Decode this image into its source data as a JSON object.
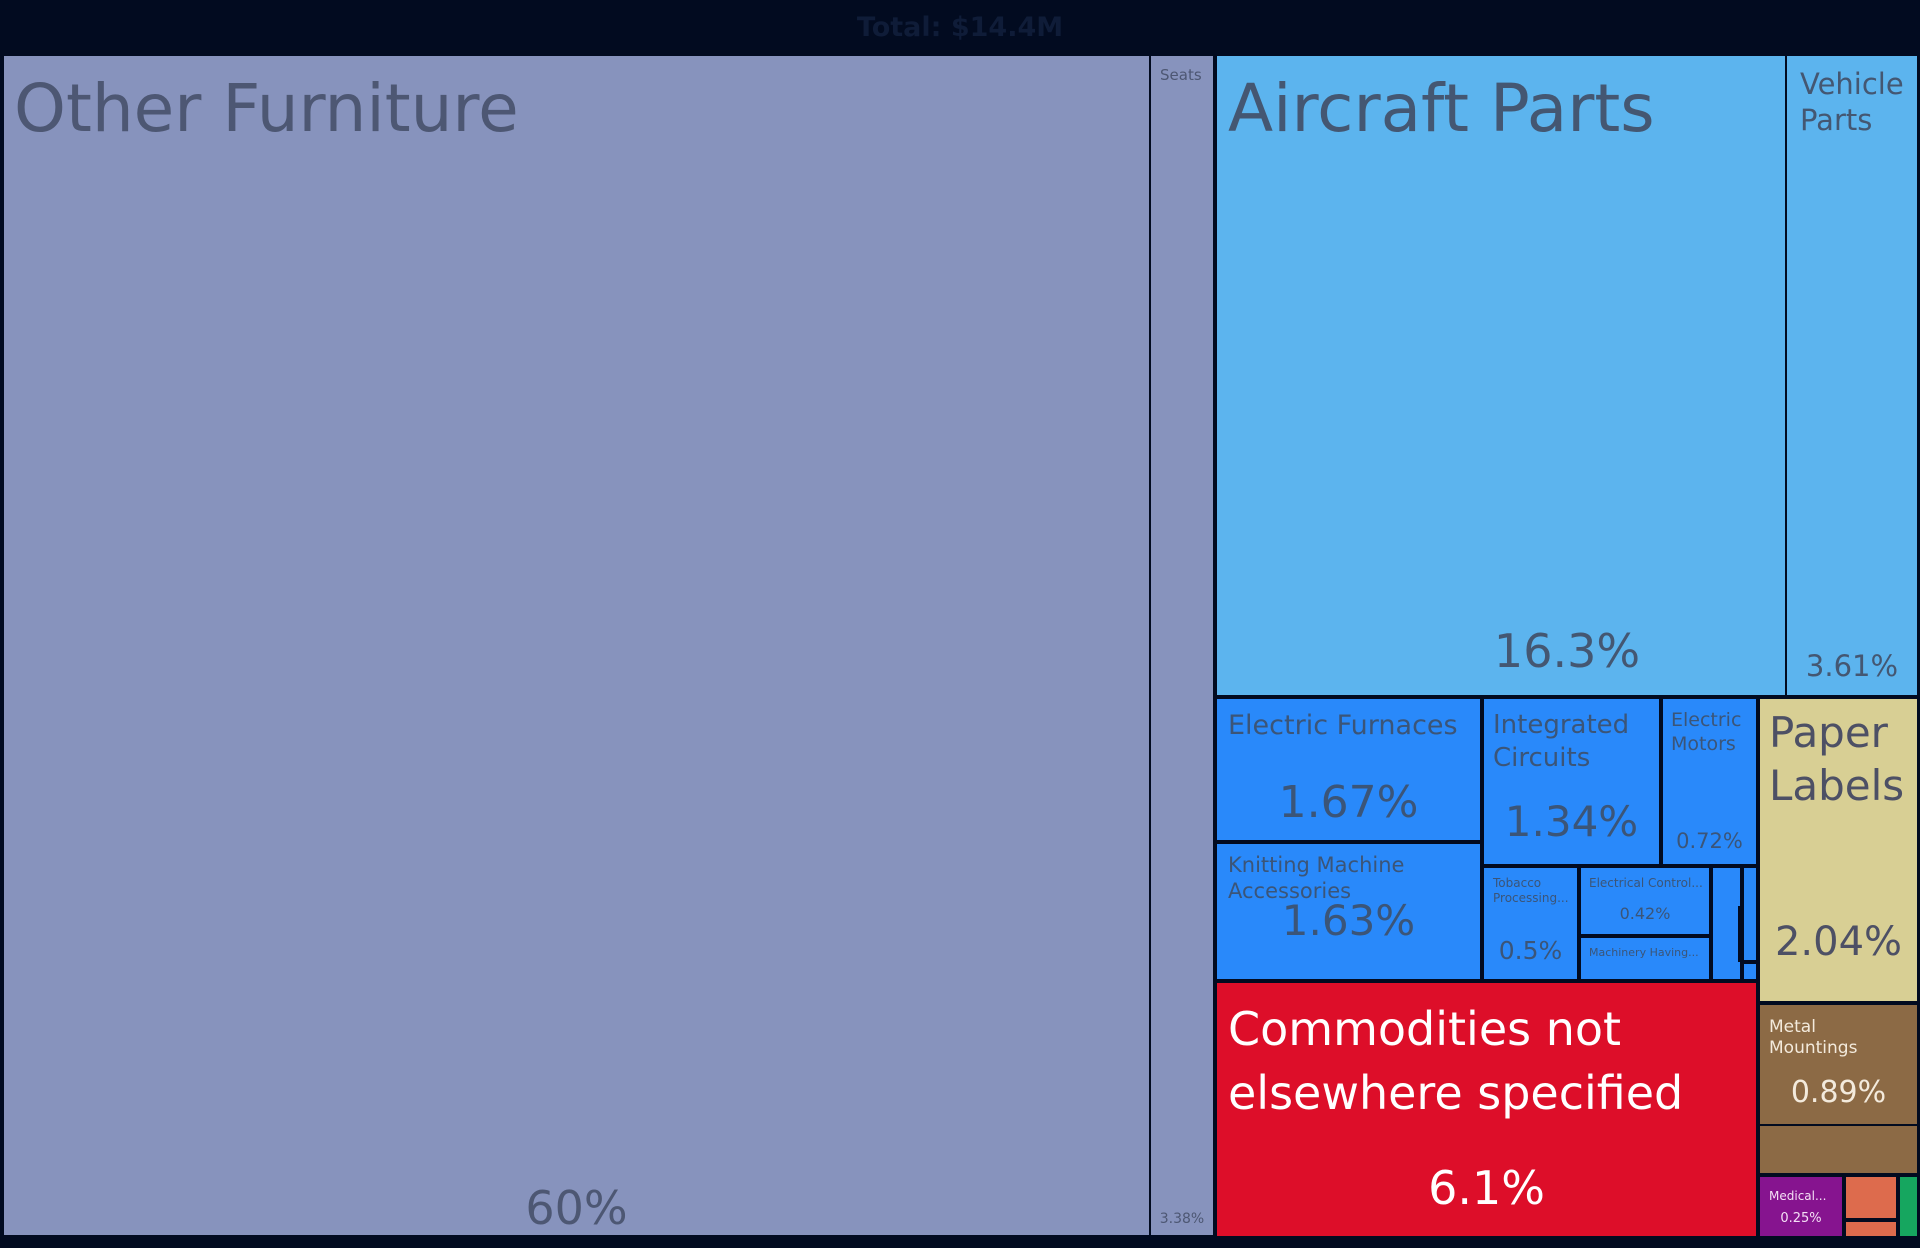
{
  "header": {
    "total_label": "Total: $14.4M"
  },
  "chart_data": {
    "type": "treemap",
    "title": "",
    "total": "Total: $14.4M",
    "items": [
      {
        "name": "Other Furniture",
        "value": 60,
        "label": "60%",
        "color": "#8793bd"
      },
      {
        "name": "Seats",
        "value": 3.38,
        "label": "3.38%",
        "color": "#8793bd"
      },
      {
        "name": "Aircraft Parts",
        "value": 16.3,
        "label": "16.3%",
        "color": "#5cb4ee"
      },
      {
        "name": "Vehicle Parts",
        "value": 3.61,
        "label": "3.61%",
        "color": "#5cb4ee"
      },
      {
        "name": "Electric Furnaces",
        "value": 1.67,
        "label": "1.67%",
        "color": "#2989fa"
      },
      {
        "name": "Knitting Machine Accessories",
        "value": 1.63,
        "label": "1.63%",
        "color": "#2989fa"
      },
      {
        "name": "Integrated Circuits",
        "value": 1.34,
        "label": "1.34%",
        "color": "#2989fa"
      },
      {
        "name": "Electric Motors",
        "value": 0.72,
        "label": "0.72%",
        "color": "#2989fa"
      },
      {
        "name": "Tobacco Processing...",
        "value": 0.5,
        "label": "0.5%",
        "color": "#2989fa"
      },
      {
        "name": "Electrical Control...",
        "value": 0.42,
        "label": "0.42%",
        "color": "#2989fa"
      },
      {
        "name": "Machinery Having...",
        "value": null,
        "label": "",
        "color": "#2989fa"
      },
      {
        "name": "Paper Labels",
        "value": 2.04,
        "label": "2.04%",
        "color": "#d8cf94"
      },
      {
        "name": "Commodities not elsewhere specified",
        "value": 6.1,
        "label": "6.1%",
        "color": "#dd0e29"
      },
      {
        "name": "Metal Mountings",
        "value": 0.89,
        "label": "0.89%",
        "color": "#8c6a45"
      },
      {
        "name": "Medical...",
        "value": 0.25,
        "label": "0.25%",
        "color": "#86148f"
      }
    ],
    "unlabeled": [
      {
        "group": "machinery",
        "color": "#2989fa"
      },
      {
        "group": "metals",
        "color": "#8c6a45"
      },
      {
        "group": "plastics",
        "color": "#dd6b4d"
      },
      {
        "group": "vegetable-products",
        "color": "#16a65f"
      }
    ]
  }
}
